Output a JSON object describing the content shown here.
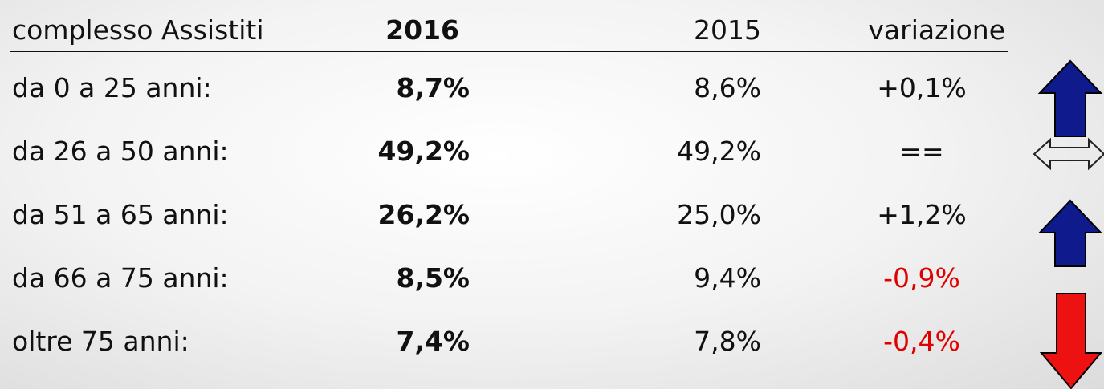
{
  "table": {
    "header": [
      "complesso Assistiti",
      "2016",
      "2015",
      "variazione"
    ],
    "rows": [
      [
        "da 0 a 25 anni:",
        "8,7%",
        "8,6%",
        "+0,1%"
      ],
      [
        "da 26 a 50 anni:",
        "49,2%",
        "49,2%",
        "=="
      ],
      [
        "da 51 a 65 anni:",
        "26,2%",
        "25,0%",
        "+1,2%"
      ],
      [
        "da 66 a 75 anni:",
        "8,5%",
        "9,4%",
        "-0,9%"
      ],
      [
        "oltre 75 anni:",
        "7,4%",
        "7,8%",
        "-0,4%"
      ]
    ]
  }
}
